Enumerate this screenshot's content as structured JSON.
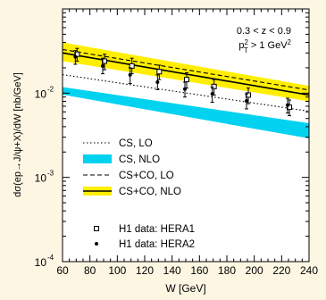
{
  "chart_data": {
    "type": "line",
    "xlabel": "W [GeV]",
    "ylabel": "dσ(ep→J/ψ+X)/dW [nb/GeV]",
    "xlim": [
      60,
      240
    ],
    "ylim": [
      0.0001,
      0.1
    ],
    "yscale": "log",
    "x_ticks": [
      "60",
      "80",
      "100",
      "120",
      "140",
      "160",
      "180",
      "200",
      "220",
      "240"
    ],
    "y_ticks": [
      {
        "base": "10",
        "exp": "-4",
        "value": 0.0001
      },
      {
        "base": "10",
        "exp": "-3",
        "value": 0.001
      },
      {
        "base": "10",
        "exp": "-2",
        "value": 0.01
      }
    ],
    "annotation": {
      "line1": "0.3 < z < 0.9",
      "line2_prefix": "p",
      "line2_sub": "T",
      "line2_sup": "2",
      "line2_mid": " > 1 GeV",
      "line2_sup2": "2"
    },
    "legend_position": "bottom-left",
    "series": [
      {
        "name": "CS, LO",
        "style": "dotted",
        "color": "#000000",
        "x": [
          60,
          240
        ],
        "y": [
          0.0166,
          0.0061
        ]
      },
      {
        "name": "CS, NLO",
        "style": "band",
        "color": "#00d2f0",
        "x": [
          60,
          240
        ],
        "y_low": [
          0.0096,
          0.0029
        ],
        "y_high": [
          0.0118,
          0.0044
        ]
      },
      {
        "name": "CS+CO, LO",
        "style": "dashed",
        "color": "#000000",
        "x": [
          60,
          240
        ],
        "y": [
          0.033,
          0.0109
        ]
      },
      {
        "name": "CS+CO, NLO",
        "style": "line_band",
        "color": "#000000",
        "band_color": "#ffee00",
        "x": [
          60,
          240
        ],
        "y": [
          0.03,
          0.0095
        ],
        "y_low": [
          0.024,
          0.008
        ],
        "y_high": [
          0.04,
          0.0122
        ]
      }
    ],
    "data_sets": [
      {
        "name": "H1 data: HERA1",
        "marker": "open-square",
        "points": [
          {
            "x": 70,
            "y": 0.029,
            "err_low": 0.024,
            "err_high": 0.034
          },
          {
            "x": 90,
            "y": 0.024,
            "err_low": 0.019,
            "err_high": 0.029
          },
          {
            "x": 110,
            "y": 0.021,
            "err_low": 0.017,
            "err_high": 0.026
          },
          {
            "x": 130,
            "y": 0.018,
            "err_low": 0.0145,
            "err_high": 0.0215
          },
          {
            "x": 150,
            "y": 0.0145,
            "err_low": 0.0115,
            "err_high": 0.0175
          },
          {
            "x": 170,
            "y": 0.012,
            "err_low": 0.0095,
            "err_high": 0.0145
          },
          {
            "x": 195,
            "y": 0.0095,
            "err_low": 0.0075,
            "err_high": 0.0115
          },
          {
            "x": 225,
            "y": 0.0068,
            "err_low": 0.0054,
            "err_high": 0.0083
          }
        ]
      },
      {
        "name": "H1 data: HERA2",
        "marker": "filled-dot",
        "points": [
          {
            "x": 70,
            "y": 0.027,
            "err_low": 0.022,
            "err_high": 0.032
          },
          {
            "x": 90,
            "y": 0.021,
            "err_low": 0.017,
            "err_high": 0.026
          },
          {
            "x": 110,
            "y": 0.0165,
            "err_low": 0.013,
            "err_high": 0.02
          },
          {
            "x": 130,
            "y": 0.0135,
            "err_low": 0.011,
            "err_high": 0.0165
          },
          {
            "x": 150,
            "y": 0.0112,
            "err_low": 0.009,
            "err_high": 0.0135
          },
          {
            "x": 170,
            "y": 0.0098,
            "err_low": 0.0078,
            "err_high": 0.0118
          },
          {
            "x": 195,
            "y": 0.0081,
            "err_low": 0.0065,
            "err_high": 0.0098
          },
          {
            "x": 225,
            "y": 0.0072,
            "err_low": 0.0058,
            "err_high": 0.0087
          }
        ]
      }
    ]
  }
}
